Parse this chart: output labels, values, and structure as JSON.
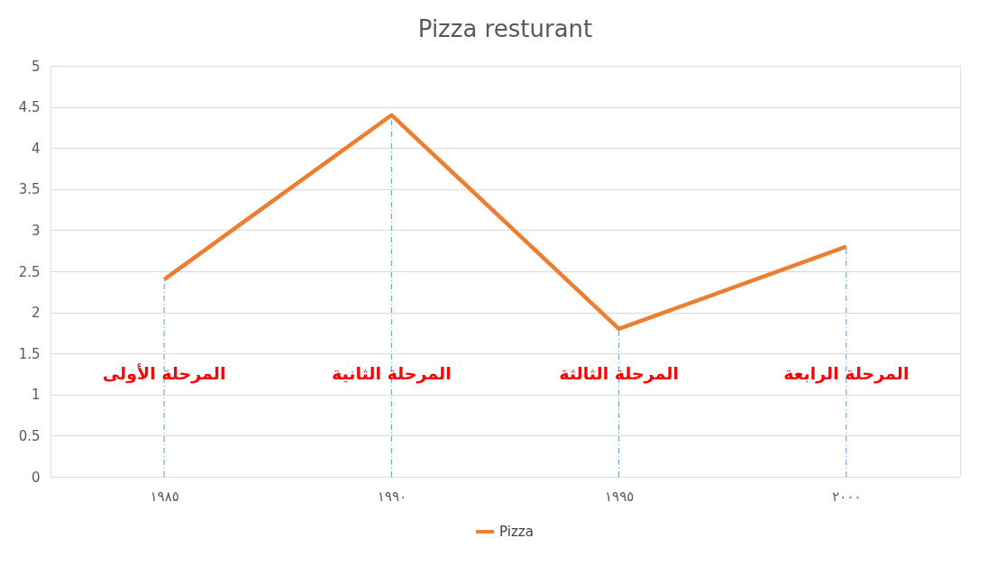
{
  "chart_data": {
    "type": "line",
    "title": "Pizza resturant",
    "categories": [
      "١٩٨٥",
      "١٩٩٠",
      "١٩٩٥",
      "٢٠٠٠"
    ],
    "series": [
      {
        "name": "Pizza",
        "color": "#ed7d31",
        "values": [
          2.4,
          4.4,
          1.8,
          2.8
        ]
      }
    ],
    "ylim": [
      0,
      5
    ],
    "yticks": [
      0,
      0.5,
      1,
      1.5,
      2,
      2.5,
      3,
      3.5,
      4,
      4.5,
      5
    ],
    "grid": "y",
    "legend": "bottom",
    "marker": "none",
    "line_style": "solid",
    "ref_lines": [
      {
        "axis": "x",
        "value": "١٩٨٥",
        "color": "#5b9bd5",
        "line_style": "dashed"
      },
      {
        "axis": "x",
        "value": "١٩٩٠",
        "color": "#5b9bd5",
        "line_style": "dashed"
      },
      {
        "axis": "x",
        "value": "١٩٩٥",
        "color": "#5b9bd5",
        "line_style": "dashed"
      },
      {
        "axis": "x",
        "value": "٢٠٠٠",
        "color": "#5b9bd5",
        "line_style": "dashed"
      }
    ],
    "annotations": [
      {
        "text": "المرحلة الأولى",
        "x": "١٩٨٥",
        "y": 1.25
      },
      {
        "text": "المرحلة الثانية",
        "x": "١٩٩٠",
        "y": 1.25
      },
      {
        "text": "المرحلة الثالثة",
        "x": "١٩٩٥",
        "y": 1.25
      },
      {
        "text": "المرحلة الرابعة",
        "x": "٢٠٠٠",
        "y": 1.25
      }
    ]
  }
}
